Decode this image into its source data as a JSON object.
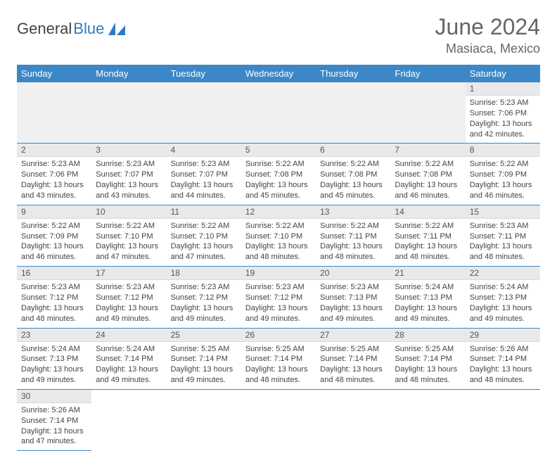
{
  "logo": {
    "text1": "General",
    "text2": "Blue"
  },
  "header": {
    "month_title": "June 2024",
    "location": "Masiaca, Mexico"
  },
  "columns": [
    "Sunday",
    "Monday",
    "Tuesday",
    "Wednesday",
    "Thursday",
    "Friday",
    "Saturday"
  ],
  "colors": {
    "header_bg": "#3b87c8",
    "header_text": "#ffffff",
    "daynum_bg": "#e9e9e9",
    "border": "#3b87c8",
    "logo_blue": "#2d7cc0",
    "text": "#444444"
  },
  "weeks": [
    [
      null,
      null,
      null,
      null,
      null,
      null,
      {
        "n": "1",
        "sunrise": "5:23 AM",
        "sunset": "7:06 PM",
        "daylight": "13 hours and 42 minutes."
      }
    ],
    [
      {
        "n": "2",
        "sunrise": "5:23 AM",
        "sunset": "7:06 PM",
        "daylight": "13 hours and 43 minutes."
      },
      {
        "n": "3",
        "sunrise": "5:23 AM",
        "sunset": "7:07 PM",
        "daylight": "13 hours and 43 minutes."
      },
      {
        "n": "4",
        "sunrise": "5:23 AM",
        "sunset": "7:07 PM",
        "daylight": "13 hours and 44 minutes."
      },
      {
        "n": "5",
        "sunrise": "5:22 AM",
        "sunset": "7:08 PM",
        "daylight": "13 hours and 45 minutes."
      },
      {
        "n": "6",
        "sunrise": "5:22 AM",
        "sunset": "7:08 PM",
        "daylight": "13 hours and 45 minutes."
      },
      {
        "n": "7",
        "sunrise": "5:22 AM",
        "sunset": "7:08 PM",
        "daylight": "13 hours and 46 minutes."
      },
      {
        "n": "8",
        "sunrise": "5:22 AM",
        "sunset": "7:09 PM",
        "daylight": "13 hours and 46 minutes."
      }
    ],
    [
      {
        "n": "9",
        "sunrise": "5:22 AM",
        "sunset": "7:09 PM",
        "daylight": "13 hours and 46 minutes."
      },
      {
        "n": "10",
        "sunrise": "5:22 AM",
        "sunset": "7:10 PM",
        "daylight": "13 hours and 47 minutes."
      },
      {
        "n": "11",
        "sunrise": "5:22 AM",
        "sunset": "7:10 PM",
        "daylight": "13 hours and 47 minutes."
      },
      {
        "n": "12",
        "sunrise": "5:22 AM",
        "sunset": "7:10 PM",
        "daylight": "13 hours and 48 minutes."
      },
      {
        "n": "13",
        "sunrise": "5:22 AM",
        "sunset": "7:11 PM",
        "daylight": "13 hours and 48 minutes."
      },
      {
        "n": "14",
        "sunrise": "5:22 AM",
        "sunset": "7:11 PM",
        "daylight": "13 hours and 48 minutes."
      },
      {
        "n": "15",
        "sunrise": "5:23 AM",
        "sunset": "7:11 PM",
        "daylight": "13 hours and 48 minutes."
      }
    ],
    [
      {
        "n": "16",
        "sunrise": "5:23 AM",
        "sunset": "7:12 PM",
        "daylight": "13 hours and 48 minutes."
      },
      {
        "n": "17",
        "sunrise": "5:23 AM",
        "sunset": "7:12 PM",
        "daylight": "13 hours and 49 minutes."
      },
      {
        "n": "18",
        "sunrise": "5:23 AM",
        "sunset": "7:12 PM",
        "daylight": "13 hours and 49 minutes."
      },
      {
        "n": "19",
        "sunrise": "5:23 AM",
        "sunset": "7:12 PM",
        "daylight": "13 hours and 49 minutes."
      },
      {
        "n": "20",
        "sunrise": "5:23 AM",
        "sunset": "7:13 PM",
        "daylight": "13 hours and 49 minutes."
      },
      {
        "n": "21",
        "sunrise": "5:24 AM",
        "sunset": "7:13 PM",
        "daylight": "13 hours and 49 minutes."
      },
      {
        "n": "22",
        "sunrise": "5:24 AM",
        "sunset": "7:13 PM",
        "daylight": "13 hours and 49 minutes."
      }
    ],
    [
      {
        "n": "23",
        "sunrise": "5:24 AM",
        "sunset": "7:13 PM",
        "daylight": "13 hours and 49 minutes."
      },
      {
        "n": "24",
        "sunrise": "5:24 AM",
        "sunset": "7:14 PM",
        "daylight": "13 hours and 49 minutes."
      },
      {
        "n": "25",
        "sunrise": "5:25 AM",
        "sunset": "7:14 PM",
        "daylight": "13 hours and 49 minutes."
      },
      {
        "n": "26",
        "sunrise": "5:25 AM",
        "sunset": "7:14 PM",
        "daylight": "13 hours and 48 minutes."
      },
      {
        "n": "27",
        "sunrise": "5:25 AM",
        "sunset": "7:14 PM",
        "daylight": "13 hours and 48 minutes."
      },
      {
        "n": "28",
        "sunrise": "5:25 AM",
        "sunset": "7:14 PM",
        "daylight": "13 hours and 48 minutes."
      },
      {
        "n": "29",
        "sunrise": "5:26 AM",
        "sunset": "7:14 PM",
        "daylight": "13 hours and 48 minutes."
      }
    ],
    [
      {
        "n": "30",
        "sunrise": "5:26 AM",
        "sunset": "7:14 PM",
        "daylight": "13 hours and 47 minutes."
      },
      null,
      null,
      null,
      null,
      null,
      null
    ]
  ],
  "labels": {
    "sunrise": "Sunrise: ",
    "sunset": "Sunset: ",
    "daylight": "Daylight: "
  }
}
